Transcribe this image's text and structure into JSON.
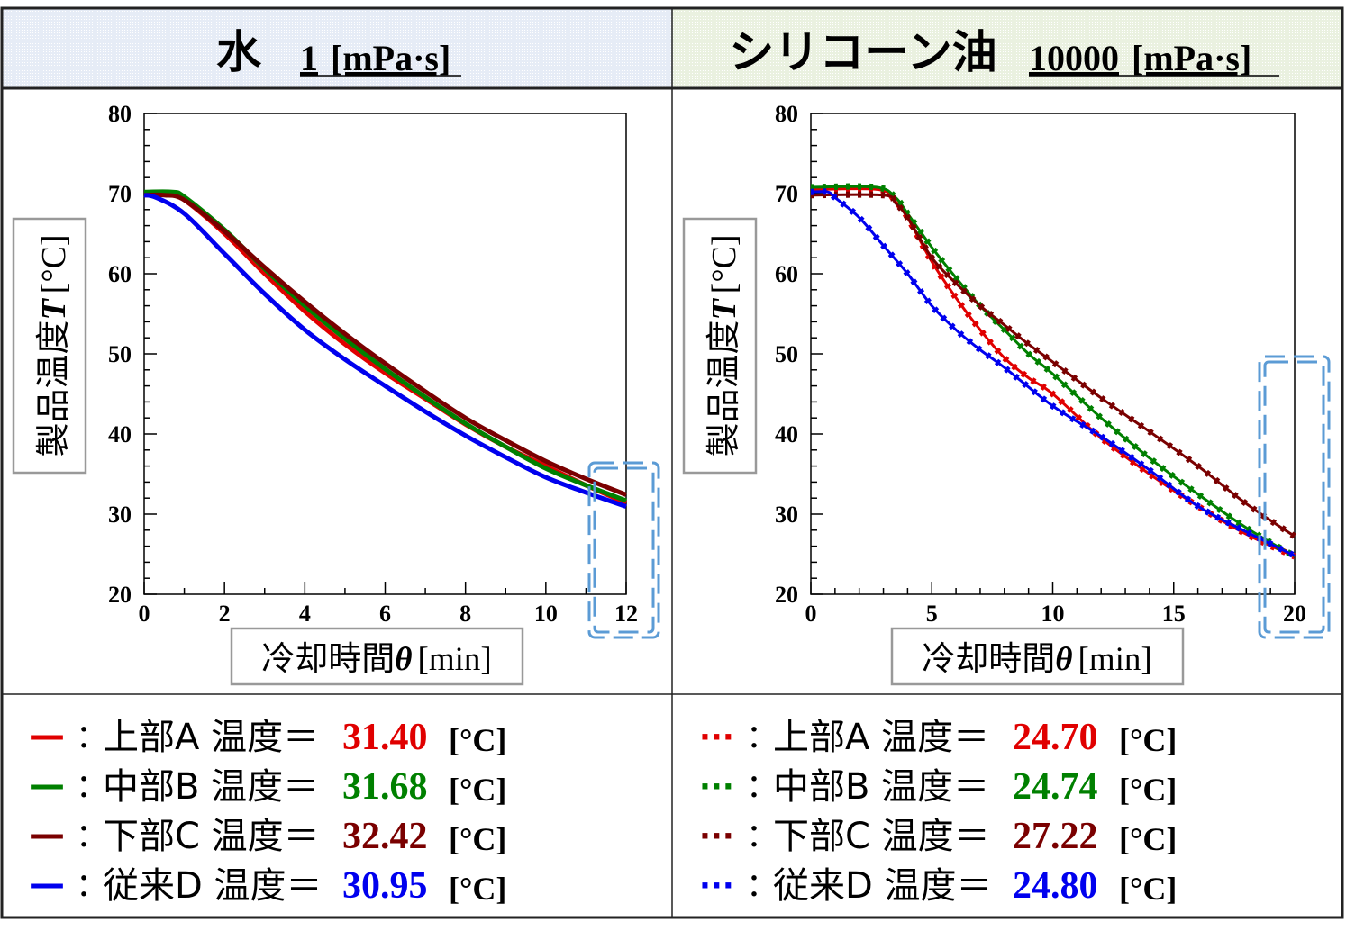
{
  "panels": [
    {
      "title_main": "水",
      "title_value": "1",
      "title_unit": "[mPa·s]",
      "header_color": "#dde6f3",
      "ylabel": "製品温度",
      "ylabel_var": "T",
      "ylabel_unit": "[°C]",
      "xlabel": "冷却時間",
      "xlabel_var": "θ",
      "xlabel_unit": "[min]",
      "legend": [
        {
          "marker": "—",
          "label": "上部A 温度＝",
          "value": "31.40",
          "unit": "[°C]",
          "color": "#e00000"
        },
        {
          "marker": "—",
          "label": "中部B 温度＝",
          "value": "31.68",
          "unit": "[°C]",
          "color": "#008000"
        },
        {
          "marker": "—",
          "label": "下部C 温度＝",
          "value": "32.42",
          "unit": "[°C]",
          "color": "#7a0000"
        },
        {
          "marker": "—",
          "label": "従来D 温度＝",
          "value": "30.95",
          "unit": "[°C]",
          "color": "#0000ee"
        }
      ]
    },
    {
      "title_main": "シリコーン油",
      "title_value": "10000",
      "title_unit": "[mPa·s]",
      "header_color": "#e3ecd6",
      "ylabel": "製品温度",
      "ylabel_var": "T",
      "ylabel_unit": "[°C]",
      "xlabel": "冷却時間",
      "xlabel_var": "θ",
      "xlabel_unit": "[min]",
      "legend": [
        {
          "marker": "···",
          "label": "上部A 温度＝",
          "value": "24.70",
          "unit": "[°C]",
          "color": "#e00000"
        },
        {
          "marker": "···",
          "label": "中部B 温度＝",
          "value": "24.74",
          "unit": "[°C]",
          "color": "#008000"
        },
        {
          "marker": "···",
          "label": "下部C 温度＝",
          "value": "27.22",
          "unit": "[°C]",
          "color": "#7a0000"
        },
        {
          "marker": "···",
          "label": "従来D 温度＝",
          "value": "24.80",
          "unit": "[°C]",
          "color": "#0000ee"
        }
      ]
    }
  ],
  "highlight_color": "#5b9bd5",
  "chart_data": [
    {
      "type": "line",
      "xlim": [
        0,
        12
      ],
      "ylim": [
        20,
        80
      ],
      "xticks": [
        0,
        2,
        4,
        6,
        8,
        10,
        12
      ],
      "yticks": [
        20,
        30,
        40,
        50,
        60,
        70,
        80
      ],
      "line_style": "solid",
      "series": [
        {
          "color": "#e00000",
          "x": [
            0,
            0.6,
            1,
            2,
            3,
            4,
            5,
            6,
            7,
            8,
            9,
            10,
            11,
            12
          ],
          "y": [
            70,
            70,
            69.2,
            65,
            60,
            55.3,
            51.2,
            47.6,
            44.4,
            41.2,
            38.4,
            36,
            33.6,
            31.4
          ]
        },
        {
          "color": "#008000",
          "x": [
            0,
            0.7,
            1,
            2,
            3,
            4,
            5,
            6,
            7,
            8,
            9,
            10,
            11,
            12
          ],
          "y": [
            70.2,
            70.2,
            69.6,
            65.5,
            60.6,
            56,
            51.9,
            48.1,
            44.6,
            41.3,
            38.4,
            35.7,
            33.6,
            31.68
          ]
        },
        {
          "color": "#7a0000",
          "x": [
            0,
            0.5,
            1,
            2,
            3,
            4,
            5,
            6,
            7,
            8,
            9,
            10,
            11,
            12
          ],
          "y": [
            69.8,
            69.8,
            69.2,
            65.3,
            60.8,
            56.5,
            52.5,
            48.8,
            45.3,
            42,
            39.2,
            36.6,
            34.4,
            32.42
          ]
        },
        {
          "color": "#0000ee",
          "x": [
            0,
            0.3,
            1,
            2,
            3,
            4,
            5,
            6,
            7,
            8,
            9,
            10,
            11,
            12
          ],
          "y": [
            69.8,
            69.5,
            67.5,
            62.5,
            57.5,
            53,
            49.3,
            46,
            42.8,
            39.8,
            37.1,
            34.6,
            32.7,
            30.95
          ]
        }
      ]
    },
    {
      "type": "line",
      "xlim": [
        0,
        20
      ],
      "ylim": [
        20,
        80
      ],
      "xticks": [
        0,
        5,
        10,
        15,
        20
      ],
      "yticks": [
        20,
        30,
        40,
        50,
        60,
        70,
        80
      ],
      "line_style": "dotted",
      "series": [
        {
          "color": "#e00000",
          "x": [
            0,
            2.8,
            3.5,
            4,
            5,
            6,
            7,
            8,
            9,
            10,
            12,
            14,
            16,
            18,
            20
          ],
          "y": [
            70.5,
            70.5,
            69,
            67,
            61.5,
            57,
            53,
            49.5,
            47,
            45,
            39.5,
            35,
            31,
            27.5,
            24.7
          ]
        },
        {
          "color": "#008000",
          "x": [
            0,
            2.7,
            3.5,
            4,
            5,
            6,
            7,
            8,
            9,
            10,
            12,
            14,
            16,
            18,
            20
          ],
          "y": [
            70.8,
            70.8,
            69.5,
            67.5,
            63.3,
            59.5,
            56,
            53,
            50,
            47.5,
            42,
            37,
            32.5,
            28.3,
            24.74
          ]
        },
        {
          "color": "#7a0000",
          "x": [
            0,
            3,
            3.5,
            4,
            5,
            6,
            7,
            8,
            9,
            10,
            12,
            14,
            16,
            18,
            20
          ],
          "y": [
            69.8,
            69.8,
            68.8,
            67,
            62,
            58.8,
            56,
            53.6,
            51.2,
            49,
            44.5,
            40.3,
            36,
            31.3,
            27.22
          ]
        },
        {
          "color": "#0000ee",
          "x": [
            0,
            0.7,
            1,
            2,
            3,
            4,
            5,
            6,
            7,
            8,
            10,
            12,
            14,
            16,
            18,
            20
          ],
          "y": [
            70.2,
            70.2,
            69.5,
            67,
            63.5,
            60,
            56,
            53,
            50.5,
            48.3,
            43.5,
            39.7,
            35.5,
            31,
            27.8,
            24.8
          ]
        }
      ]
    }
  ]
}
